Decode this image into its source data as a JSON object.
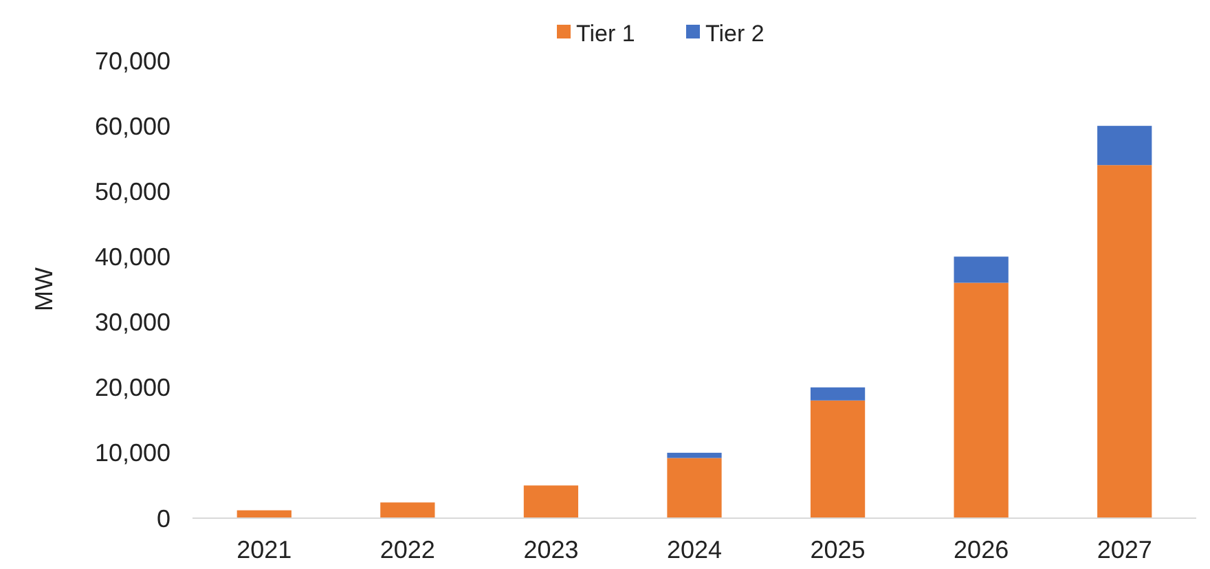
{
  "chart_data": {
    "type": "bar",
    "stacked": true,
    "ylabel": "MW",
    "categories": [
      "2021",
      "2022",
      "2023",
      "2024",
      "2025",
      "2026",
      "2027"
    ],
    "series": [
      {
        "name": "Tier 1",
        "color": "#ed7d31",
        "values": [
          1200,
          2400,
          5000,
          9200,
          18000,
          36000,
          54000
        ]
      },
      {
        "name": "Tier 2",
        "color": "#4472c4",
        "values": [
          0,
          0,
          0,
          800,
          2000,
          4000,
          6000
        ]
      }
    ],
    "ylim": [
      0,
      70000
    ],
    "yticks": [
      {
        "value": 0,
        "label": "0"
      },
      {
        "value": 10000,
        "label": "10,000"
      },
      {
        "value": 20000,
        "label": "20,000"
      },
      {
        "value": 30000,
        "label": "30,000"
      },
      {
        "value": 40000,
        "label": "40,000"
      },
      {
        "value": 50000,
        "label": "50,000"
      },
      {
        "value": 60000,
        "label": "60,000"
      },
      {
        "value": 70000,
        "label": "70,000"
      }
    ],
    "grid": false,
    "legend": "top"
  }
}
